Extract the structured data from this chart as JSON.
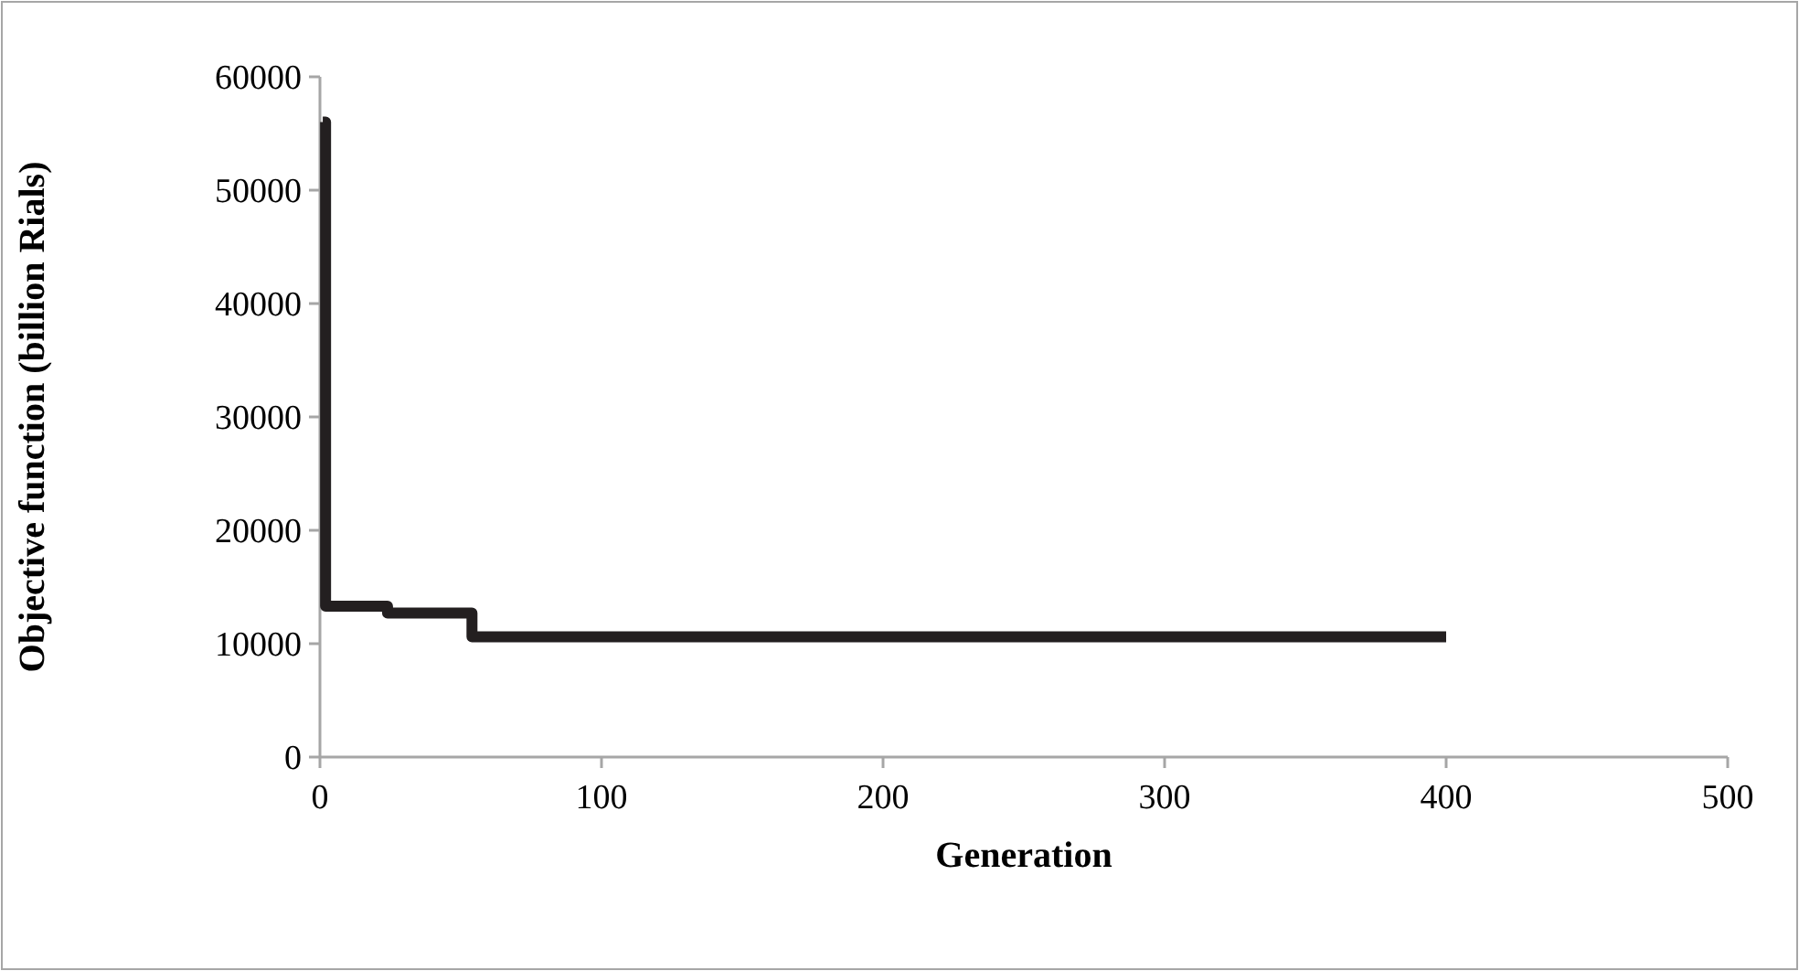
{
  "chart_data": {
    "type": "step",
    "xlabel": "Generation",
    "ylabel": "Objective function (billion Rials)",
    "xlim": [
      0,
      500
    ],
    "xticks": [
      0,
      100,
      200,
      300,
      400,
      500
    ],
    "ylim": [
      0,
      60000
    ],
    "yticks": [
      0,
      10000,
      20000,
      30000,
      40000,
      50000,
      60000
    ],
    "grid": false,
    "marker": "none",
    "line_style": "solid",
    "series": [
      {
        "color": "#231f20",
        "x": [
          1,
          2,
          24,
          54,
          400
        ],
        "values": [
          56000,
          13300,
          12700,
          10600,
          10600
        ]
      }
    ]
  }
}
